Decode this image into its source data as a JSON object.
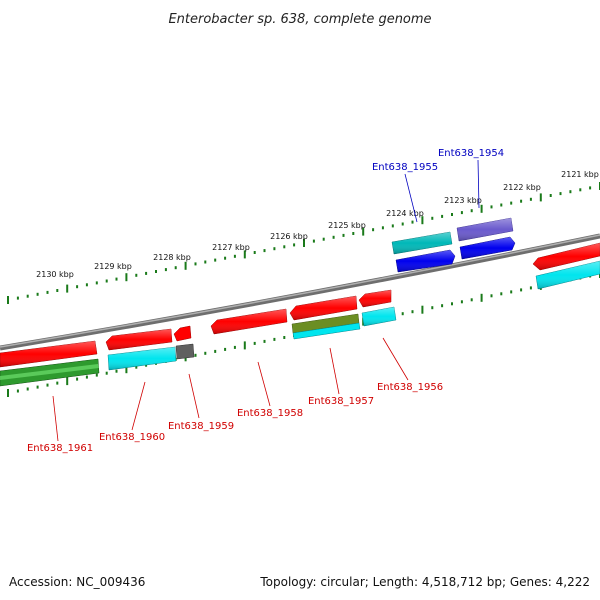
{
  "title": "Enterobacter sp. 638, complete genome",
  "footer": {
    "accession": "Accession: NC_009436",
    "summary": "Topology: circular; Length: 4,518,712 bp; Genes: 4,222"
  },
  "ruler_labels": [
    "2121 kbp",
    "2122 kbp",
    "2123 kbp",
    "2124 kbp",
    "2125 kbp",
    "2126 kbp",
    "2127 kbp",
    "2128 kbp",
    "2129 kbp",
    "2130 kbp"
  ],
  "gene_labels": [
    {
      "text": "Ent638_1954",
      "color": "blue"
    },
    {
      "text": "Ent638_1955",
      "color": "blue"
    },
    {
      "text": "Ent638_1956",
      "color": "red"
    },
    {
      "text": "Ent638_1957",
      "color": "red"
    },
    {
      "text": "Ent638_1958",
      "color": "red"
    },
    {
      "text": "Ent638_1959",
      "color": "red"
    },
    {
      "text": "Ent638_1960",
      "color": "red"
    },
    {
      "text": "Ent638_1961",
      "color": "red"
    }
  ],
  "colors": {
    "red": "#ff0000",
    "cyan": "#00e5ee",
    "teal": "#00b8b8",
    "blue": "#0000ee",
    "slate": "#6a5acd",
    "green": "#2e9a2e",
    "olive": "#6b8e23",
    "gray": "#606060",
    "backbone": "#8c8c8c",
    "tick": "#1a7a1a",
    "label_red": "#d00000",
    "label_blue": "#0000c0"
  }
}
